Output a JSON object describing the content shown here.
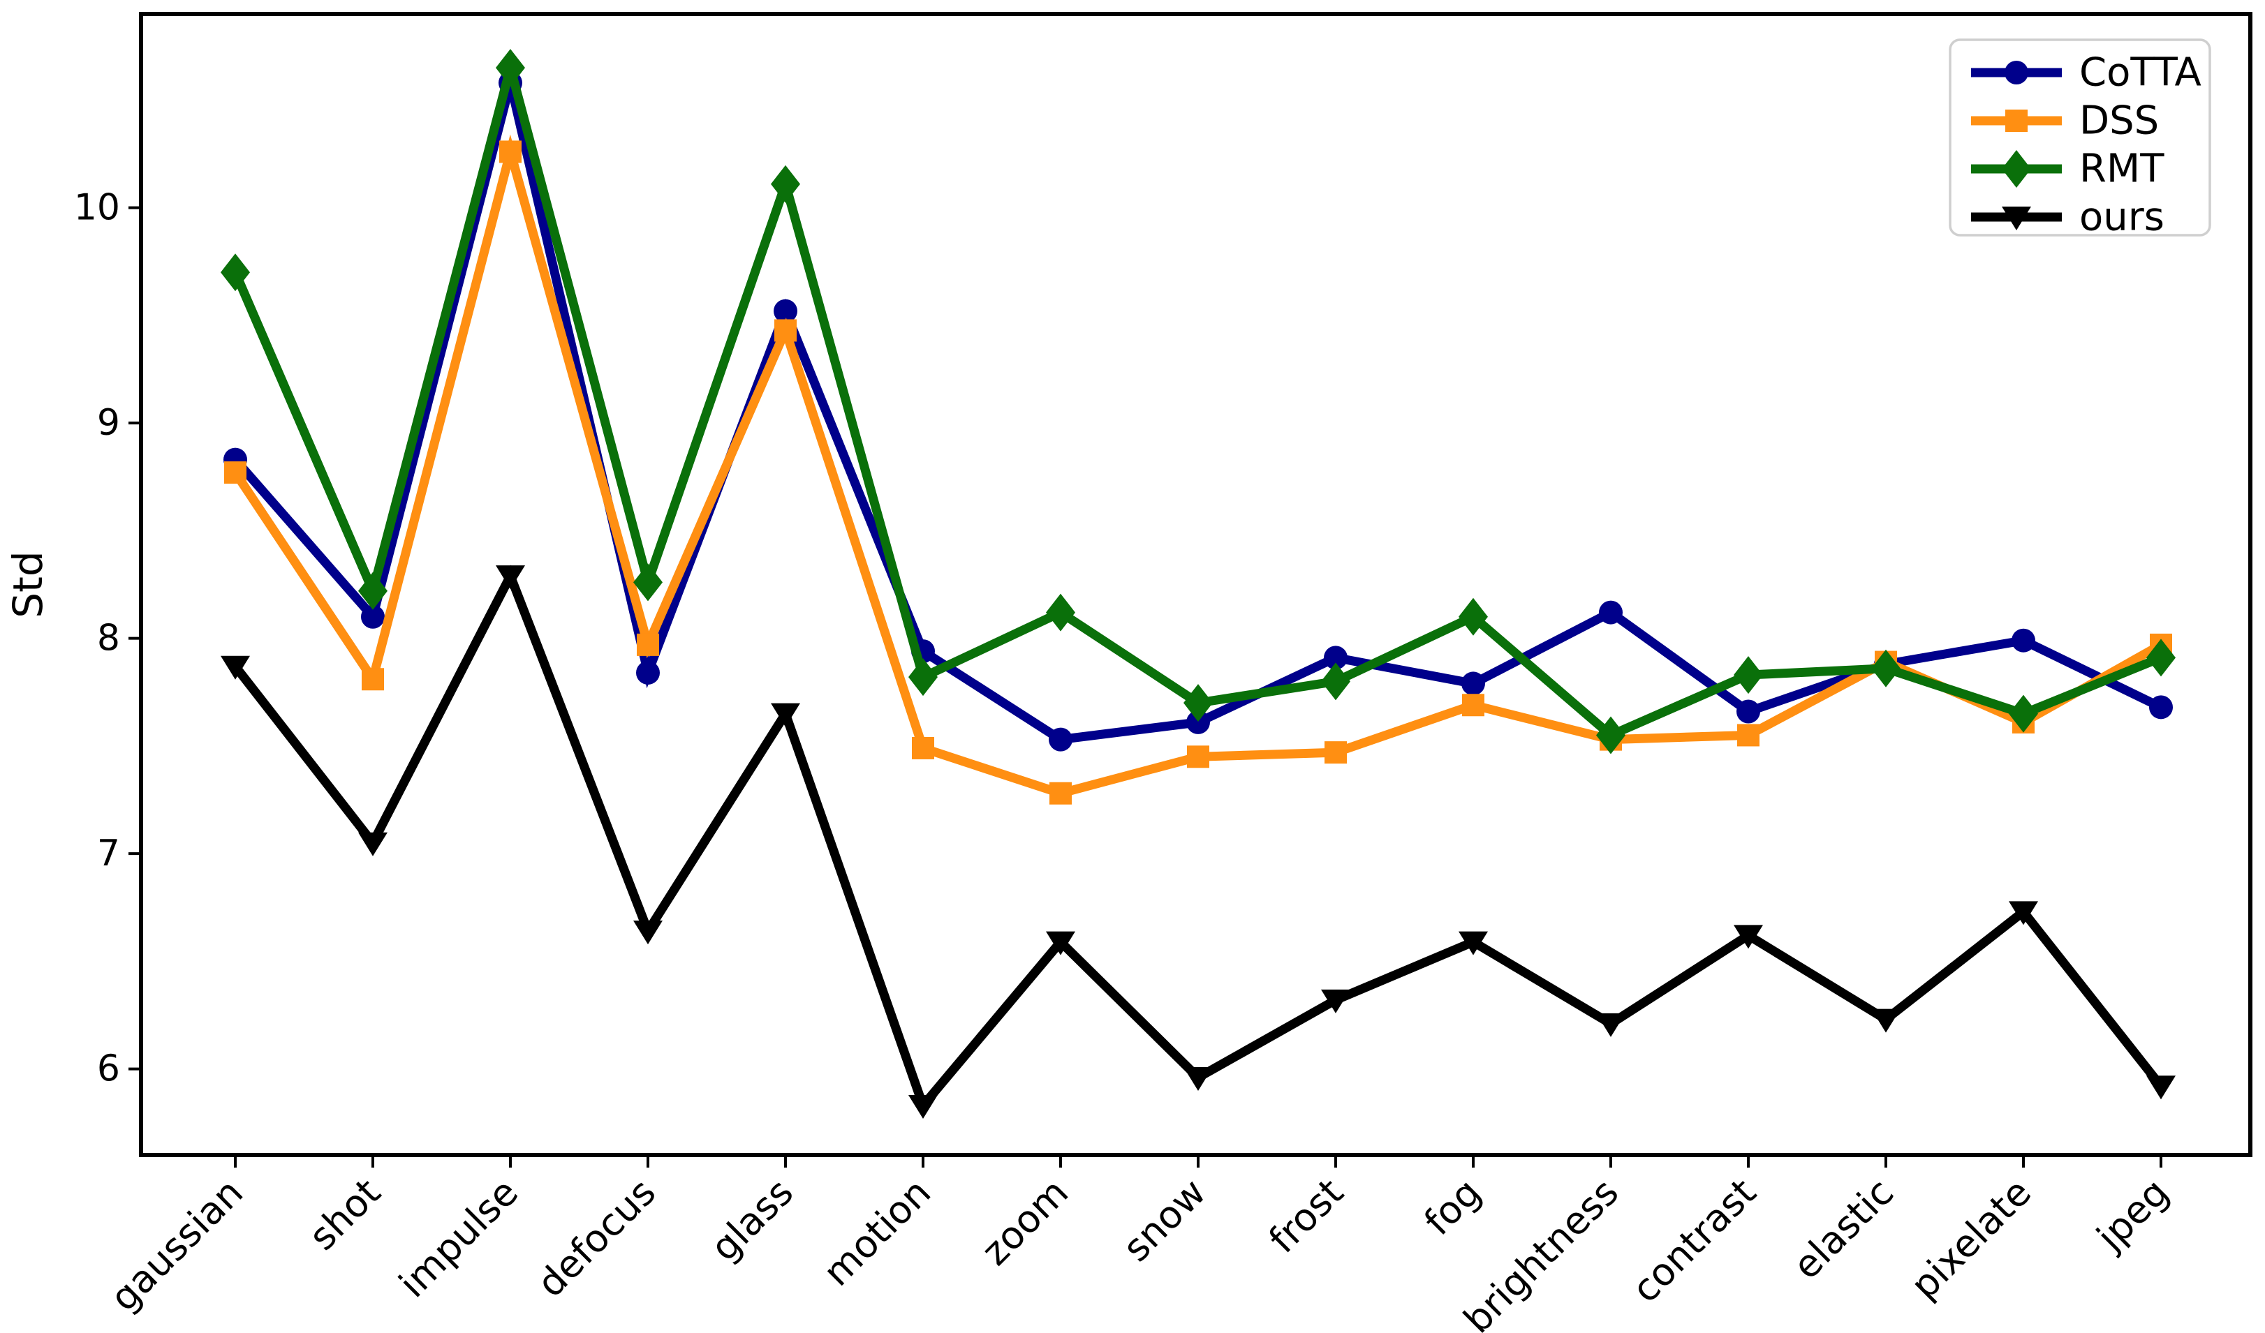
{
  "chart_data": {
    "type": "line",
    "title": "",
    "xlabel": "",
    "ylabel": "Std",
    "grid": false,
    "legend_position": "upper right",
    "ylim": [
      5.6,
      10.9
    ],
    "yticks": [
      6,
      7,
      8,
      9,
      10
    ],
    "categories": [
      "gaussian",
      "shot",
      "impulse",
      "defocus",
      "glass",
      "motion",
      "zoom",
      "snow",
      "frost",
      "fog",
      "brightness",
      "contrast",
      "elastic",
      "pixelate",
      "jpeg"
    ],
    "series": [
      {
        "name": "CoTTA",
        "color": "#00008B",
        "marker": "circle",
        "values": [
          8.83,
          8.1,
          10.58,
          7.84,
          9.52,
          7.94,
          7.53,
          7.61,
          7.91,
          7.79,
          8.12,
          7.66,
          7.88,
          7.99,
          7.68
        ]
      },
      {
        "name": "DSS",
        "color": "#FF8F12",
        "marker": "square",
        "values": [
          8.77,
          7.81,
          10.26,
          7.97,
          9.43,
          7.49,
          7.28,
          7.45,
          7.47,
          7.69,
          7.53,
          7.55,
          7.89,
          7.61,
          7.97
        ]
      },
      {
        "name": "RMT",
        "color": "#0A700A",
        "marker": "diamond",
        "values": [
          9.7,
          8.22,
          10.65,
          8.26,
          10.11,
          7.82,
          8.12,
          7.7,
          7.8,
          8.1,
          7.55,
          7.83,
          7.86,
          7.65,
          7.91
        ]
      },
      {
        "name": "ours",
        "color": "#000000",
        "marker": "triangle-down",
        "values": [
          7.87,
          7.05,
          8.29,
          6.64,
          7.65,
          5.83,
          6.59,
          5.96,
          6.32,
          6.59,
          6.21,
          6.62,
          6.23,
          6.73,
          5.92
        ]
      }
    ],
    "axis_color": "#000000",
    "legend_border_color": "#CFCFCF",
    "legend_bg_color": "#FFFFFF"
  }
}
